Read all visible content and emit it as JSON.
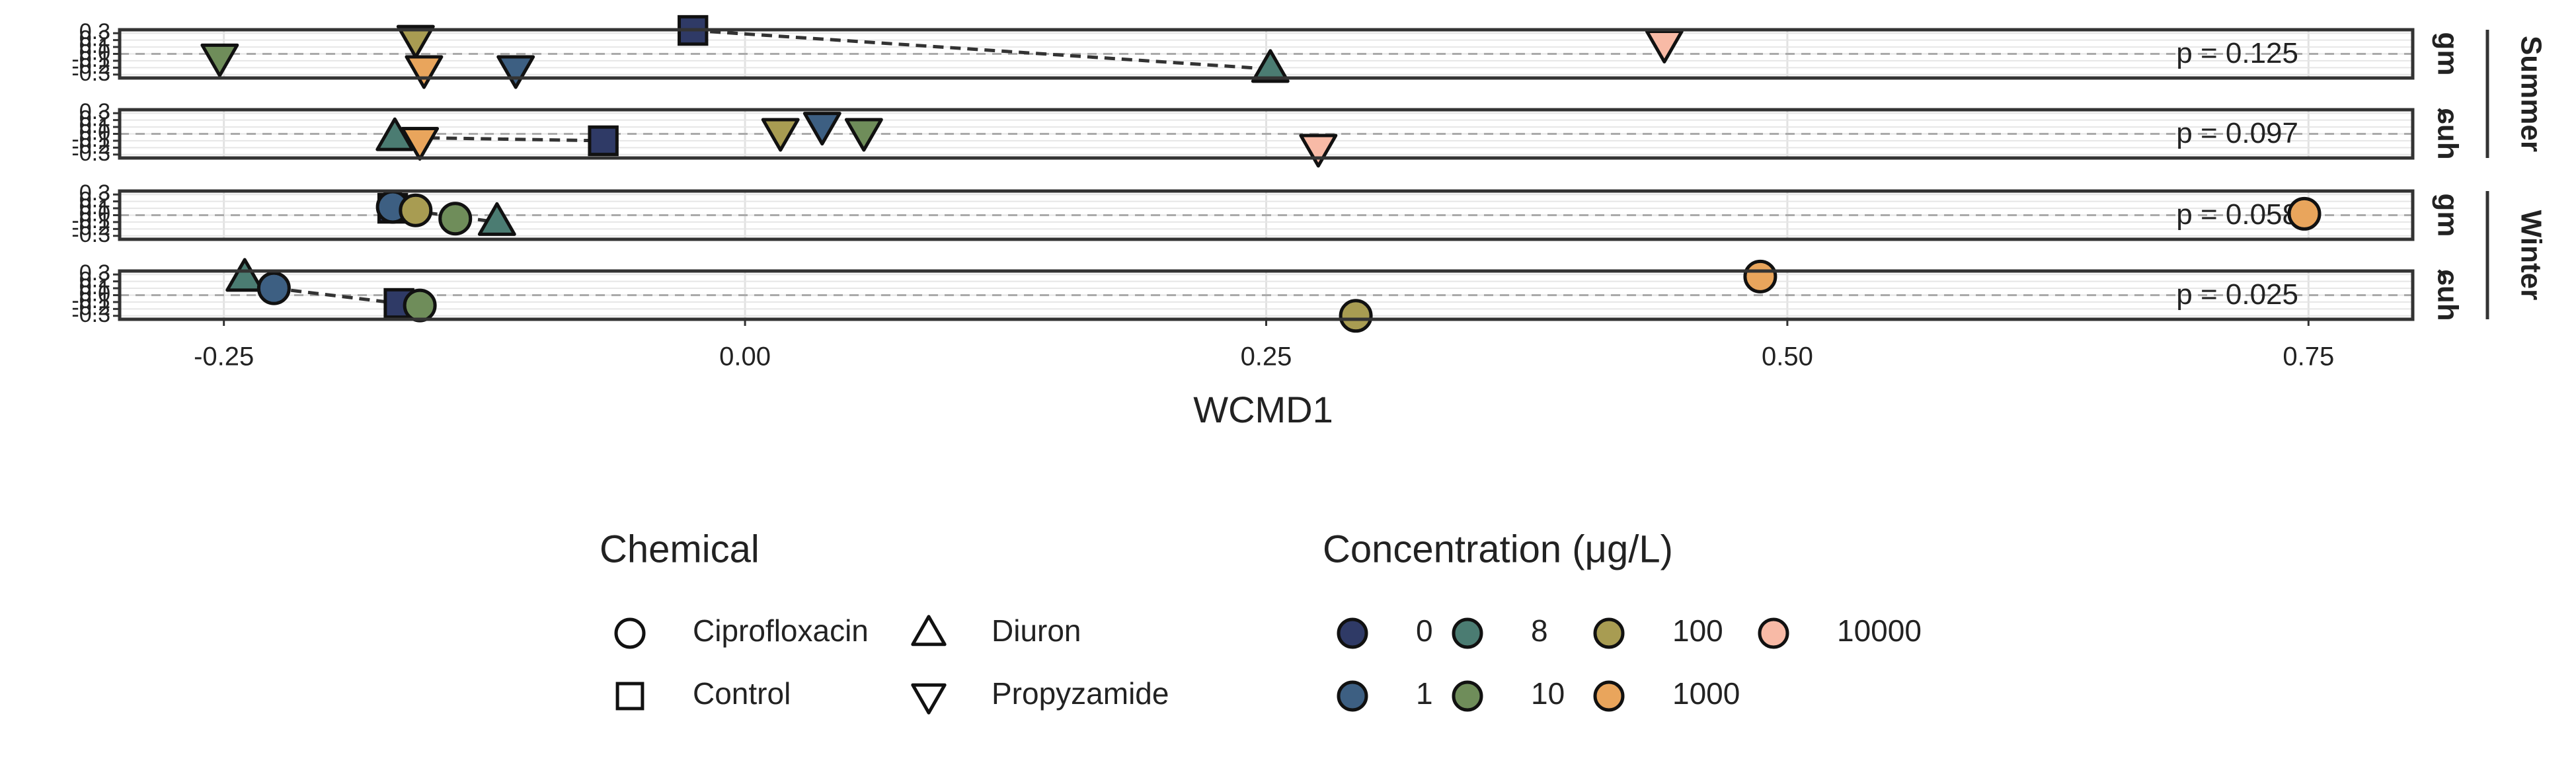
{
  "chart_data": {
    "type": "scatter",
    "xlabel": "WCMD1",
    "xlim": [
      -0.3,
      0.8
    ],
    "xticks": [
      -0.25,
      {
        "value": 0,
        "label": "0.00"
      },
      0.25,
      {
        "value": 0.5,
        "label": "0.50"
      },
      0.75
    ],
    "ylim": [
      -0.35,
      0.35
    ],
    "yticks": [
      -0.3,
      -0.2,
      -0.1,
      {
        "value": 0,
        "label": "0.0"
      },
      0.1,
      0.2,
      0.3
    ],
    "hline": 0,
    "grid": true,
    "rows": [
      {
        "label": "Summer",
        "panels": [
          {
            "facet": "gm",
            "annotation": "p =  0.125",
            "x": [
              -0.252,
              -0.158,
              -0.154,
              -0.11,
              -0.025,
              0.252,
              0.441
            ],
            "y": [
              -0.05,
              0.22,
              -0.22,
              -0.22,
              0.34,
              -0.22,
              0.15
            ],
            "chemical": [
              "Propyzamide",
              "Propyzamide",
              "Propyzamide",
              "Propyzamide",
              "Control",
              "Diuron",
              "Propyzamide"
            ],
            "concentration": [
              10,
              100,
              1000,
              1,
              0,
              8,
              10000
            ],
            "link": [
              4,
              5
            ]
          },
          {
            "facet": "ɕuh",
            "annotation": "p =  0.097",
            "x": [
              -0.168,
              -0.156,
              -0.068,
              0.017,
              0.037,
              0.057,
              0.275
            ],
            "y": [
              -0.05,
              -0.1,
              -0.1,
              0.03,
              0.12,
              0.03,
              -0.2
            ],
            "chemical": [
              "Diuron",
              "Propyzamide",
              "Control",
              "Propyzamide",
              "Propyzamide",
              "Propyzamide",
              "Propyzamide"
            ],
            "concentration": [
              8,
              1000,
              0,
              100,
              1,
              10,
              10000
            ],
            "link": [
              0,
              2
            ]
          }
        ]
      },
      {
        "label": "Winter",
        "panels": [
          {
            "facet": "gm",
            "annotation": "p =  0.058",
            "x": [
              -0.169,
              -0.169,
              -0.158,
              -0.139,
              -0.119,
              0.748
            ],
            "y": [
              0.1,
              0.12,
              0.07,
              -0.05,
              -0.1,
              0.02
            ],
            "chemical": [
              "Control",
              "Ciprofloxacin",
              "Ciprofloxacin",
              "Ciprofloxacin",
              "Diuron",
              "Ciprofloxacin"
            ],
            "concentration": [
              0,
              1,
              100,
              10,
              8,
              1000
            ],
            "link": [
              0,
              4
            ]
          },
          {
            "facet": "ɕuh",
            "annotation": "p =  0.025",
            "x": [
              -0.24,
              -0.226,
              -0.166,
              -0.156,
              0.487,
              0.293
            ],
            "y": [
              0.25,
              0.1,
              -0.12,
              -0.15,
              0.27,
              -0.3
            ],
            "chemical": [
              "Diuron",
              "Ciprofloxacin",
              "Control",
              "Ciprofloxacin",
              "Ciprofloxacin",
              "Ciprofloxacin"
            ],
            "concentration": [
              8,
              1,
              0,
              10,
              1000,
              100
            ],
            "link": [
              1,
              2
            ]
          }
        ]
      }
    ],
    "shape_legend": {
      "title": "Chemical",
      "names": [
        "Ciprofloxacin",
        "Control",
        "Diuron",
        "Propyzamide"
      ],
      "shapes": [
        "circle",
        "square",
        "triangle-up",
        "triangle-down"
      ]
    },
    "color_legend": {
      "title": "Concentration (μg/L)",
      "values": [
        0,
        1,
        8,
        10,
        100,
        1000,
        10000
      ],
      "colors": [
        "#2f3a66",
        "#3d5f82",
        "#4b7c72",
        "#6f8d5a",
        "#a89c52",
        "#e9a55c",
        "#f8baa6"
      ]
    }
  }
}
